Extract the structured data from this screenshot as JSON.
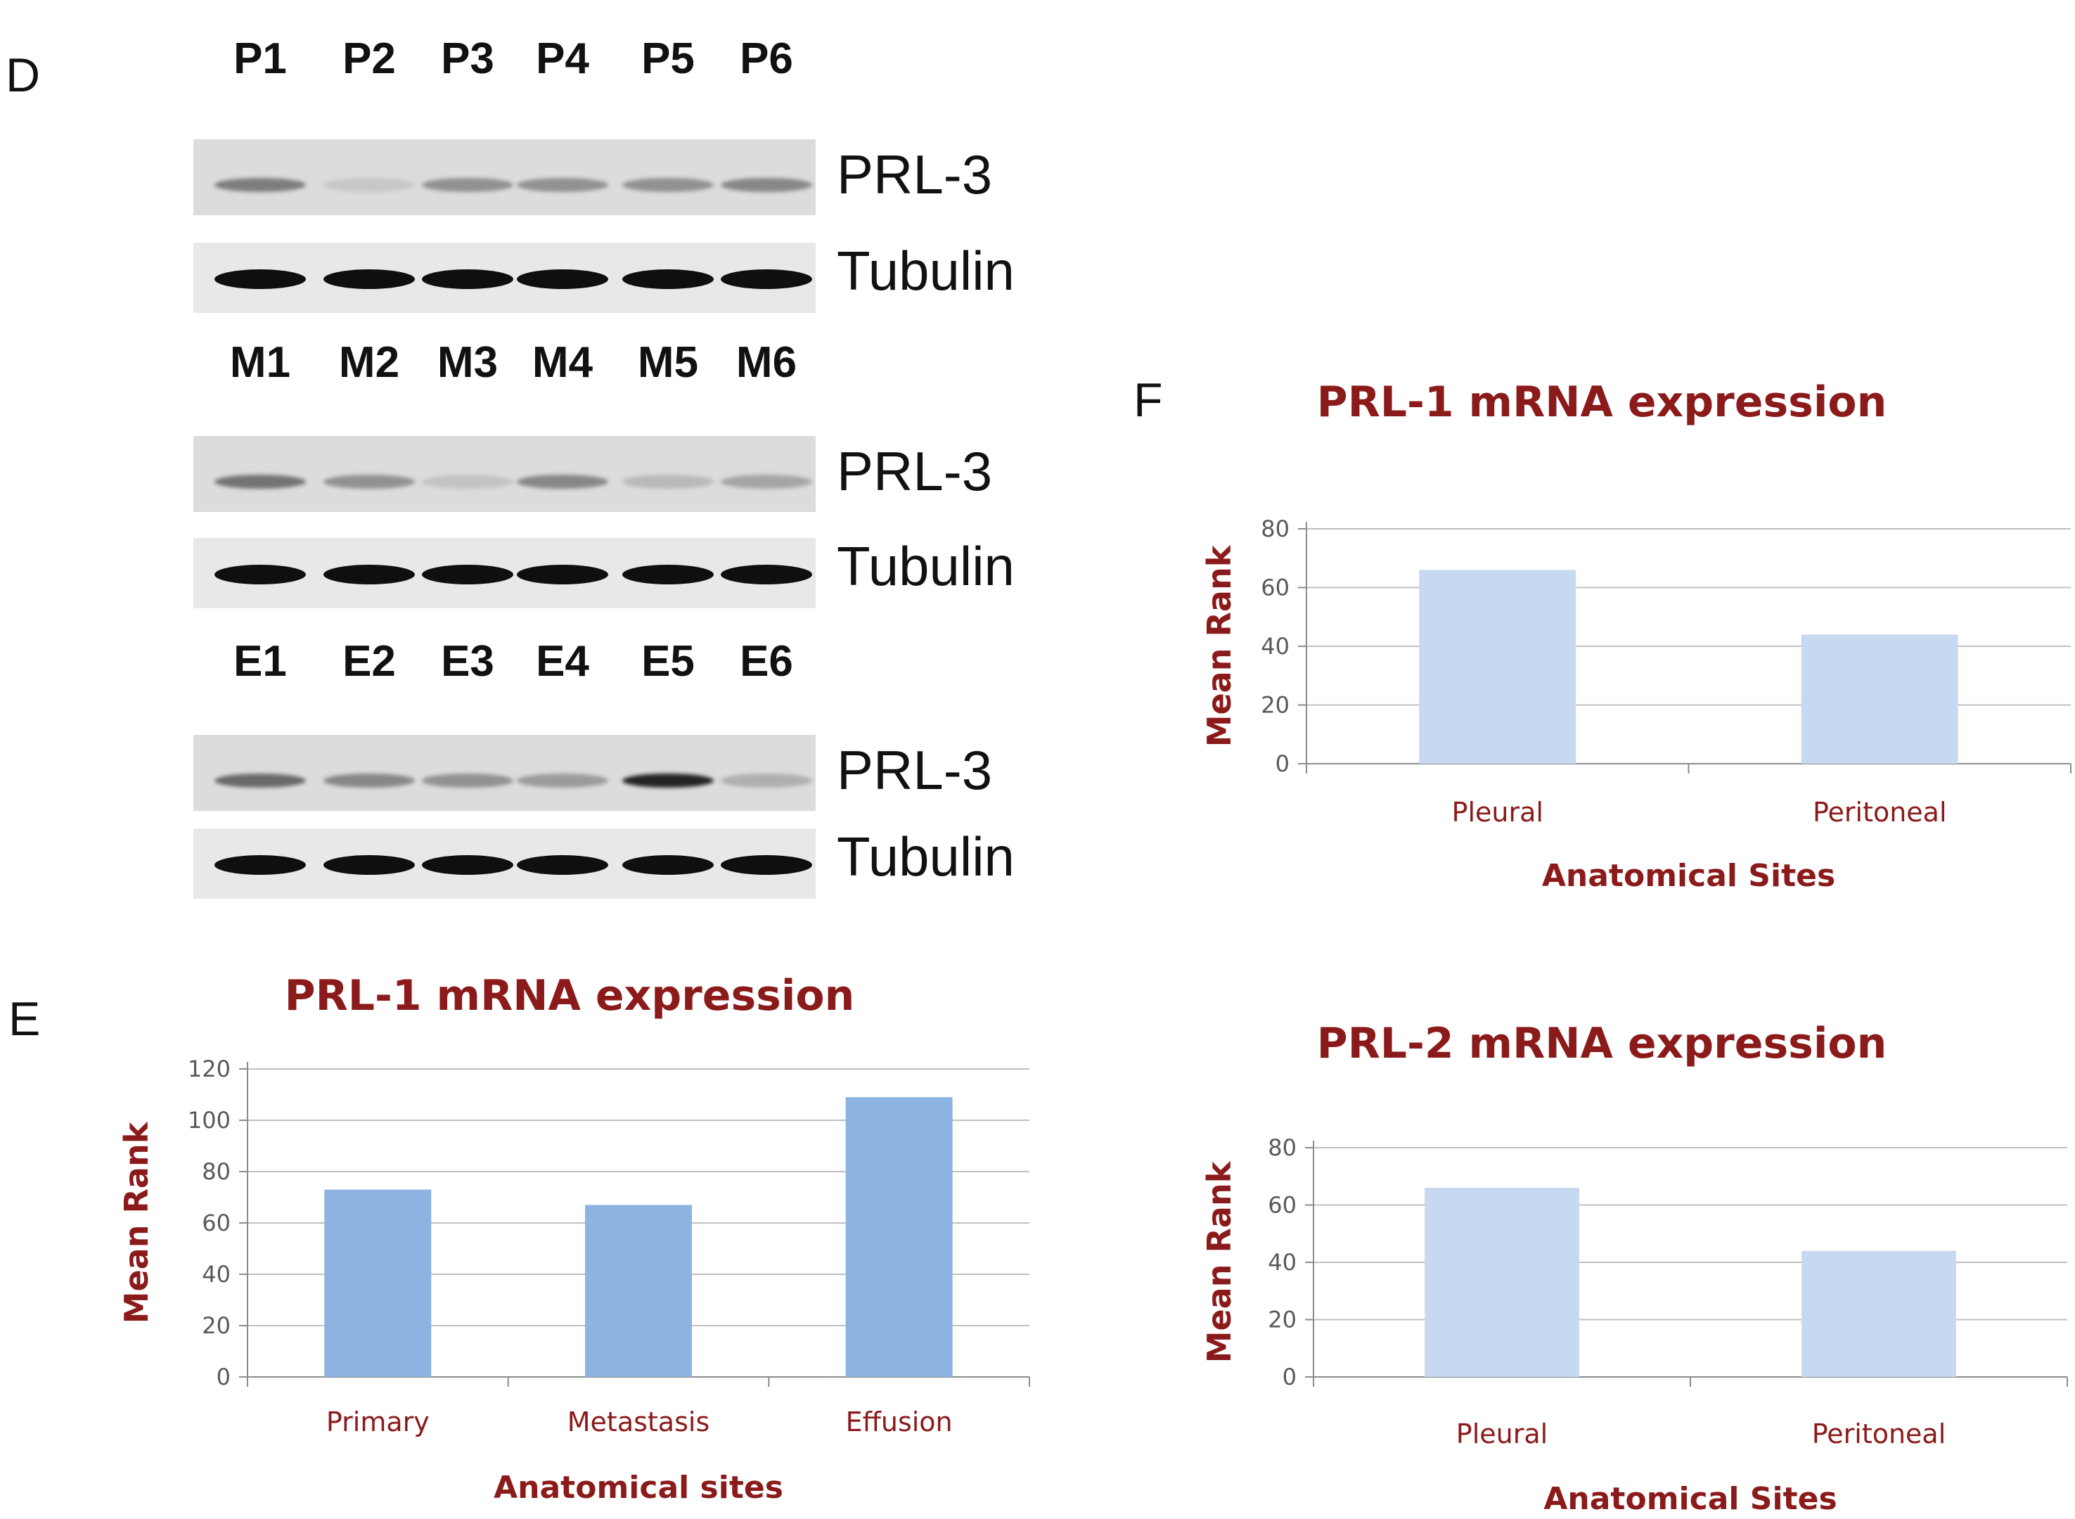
{
  "panels": {
    "D": "D",
    "E": "E",
    "F": "F"
  },
  "western": [
    {
      "lanes": [
        "P1",
        "P2",
        "P3",
        "P4",
        "P5",
        "P6"
      ],
      "rows": [
        {
          "label": "PRL-3",
          "kind": "prl",
          "intensity": [
            0.45,
            0.08,
            0.35,
            0.35,
            0.35,
            0.4
          ]
        },
        {
          "label": "Tubulin",
          "kind": "tub",
          "intensity": [
            1,
            1,
            1,
            1,
            1,
            1
          ]
        }
      ]
    },
    {
      "lanes": [
        "M1",
        "M2",
        "M3",
        "M4",
        "M5",
        "M6"
      ],
      "rows": [
        {
          "label": "PRL-3",
          "kind": "prl",
          "intensity": [
            0.5,
            0.35,
            0.1,
            0.4,
            0.15,
            0.25
          ]
        },
        {
          "label": "Tubulin",
          "kind": "tub",
          "intensity": [
            1,
            1,
            1,
            1,
            1,
            1
          ]
        }
      ]
    },
    {
      "lanes": [
        "E1",
        "E2",
        "E3",
        "E4",
        "E5",
        "E6"
      ],
      "rows": [
        {
          "label": "PRL-3",
          "kind": "prl",
          "intensity": [
            0.55,
            0.4,
            0.35,
            0.3,
            0.9,
            0.2
          ]
        },
        {
          "label": "Tubulin",
          "kind": "tub",
          "intensity": [
            1,
            1,
            1,
            1,
            1,
            1
          ]
        }
      ]
    }
  ],
  "colors": {
    "title": "#8b1a1a",
    "bar_dark": "#8db3e2",
    "bar_light": "#c6d9f0",
    "grid": "#c0c0c0",
    "axis_text": "#595959"
  },
  "chart_data": [
    {
      "type": "bar",
      "title": "PRL-1 mRNA expression",
      "xlabel": "Anatomical sites",
      "ylabel": "Mean Rank",
      "categories": [
        "Primary",
        "Metastasis",
        "Effusion"
      ],
      "values": [
        73,
        67,
        109
      ],
      "ylim": [
        0,
        120
      ],
      "yticks": [
        "0",
        "20",
        "40",
        "60",
        "80",
        "100",
        "120"
      ],
      "grid": true,
      "bar_color": "#8db3e2"
    },
    {
      "type": "bar",
      "title": "PRL-1 mRNA expression",
      "xlabel": "Anatomical Sites",
      "ylabel": "Mean Rank",
      "categories": [
        "Pleural",
        "Peritoneal"
      ],
      "values": [
        66,
        44
      ],
      "ylim": [
        0,
        80
      ],
      "yticks": [
        "0",
        "20",
        "40",
        "60",
        "80"
      ],
      "grid": true,
      "bar_color": "#c6d9f0"
    },
    {
      "type": "bar",
      "title": "PRL-2 mRNA expression",
      "xlabel": "Anatomical Sites",
      "ylabel": "Mean Rank",
      "categories": [
        "Pleural",
        "Peritoneal"
      ],
      "values": [
        66,
        44
      ],
      "ylim": [
        0,
        80
      ],
      "yticks": [
        "0",
        "20",
        "40",
        "60",
        "80"
      ],
      "grid": true,
      "bar_color": "#c6d9f0"
    }
  ]
}
